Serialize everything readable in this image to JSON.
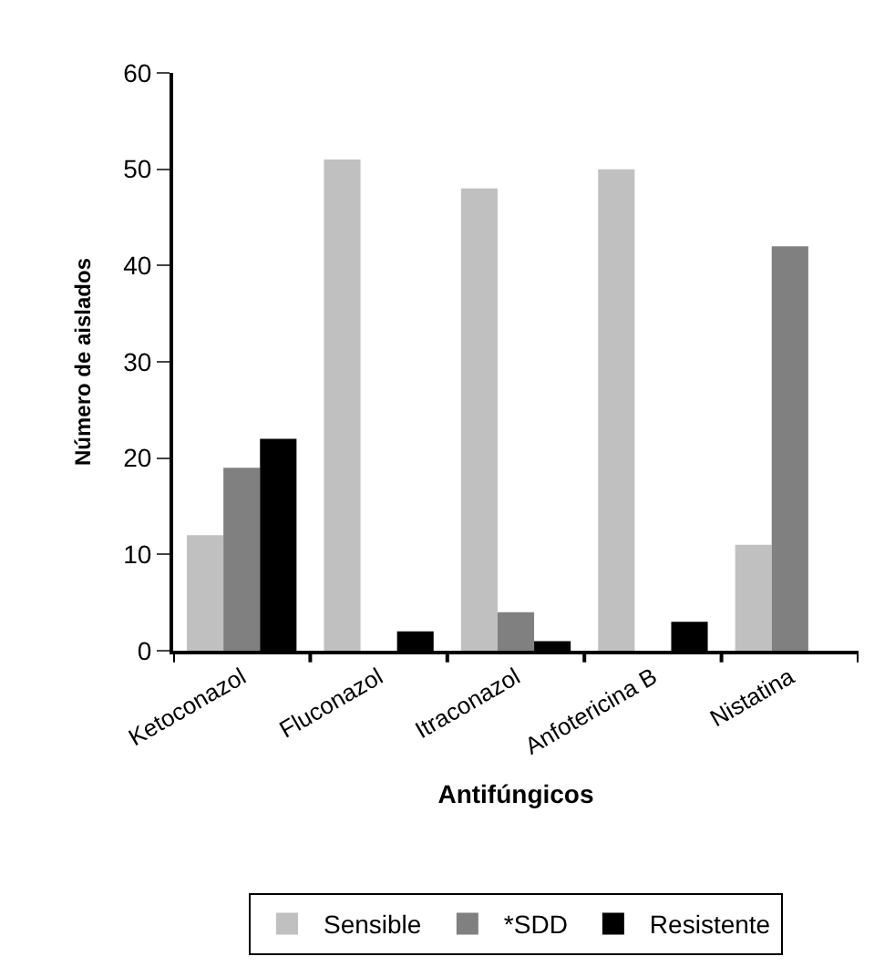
{
  "chart_data": {
    "type": "bar",
    "xlabel": "Antifúngicos",
    "ylabel": "Número de aislados",
    "categories": [
      "Ketoconazol",
      "Fluconazol",
      "Itraconazol",
      "Anfotericina B",
      "Nistatina"
    ],
    "series": [
      {
        "name": "Sensible",
        "color": "#c0c0c0",
        "values": [
          12,
          51,
          48,
          50,
          11
        ]
      },
      {
        "name": "*SDD",
        "color": "#808080",
        "values": [
          19,
          0,
          4,
          0,
          42
        ]
      },
      {
        "name": "Resistente",
        "color": "#000000",
        "values": [
          22,
          2,
          1,
          3,
          0
        ]
      }
    ],
    "ylim": [
      0,
      60
    ],
    "yticks": [
      0,
      10,
      20,
      30,
      40,
      50,
      60
    ],
    "legend": "bottom"
  }
}
